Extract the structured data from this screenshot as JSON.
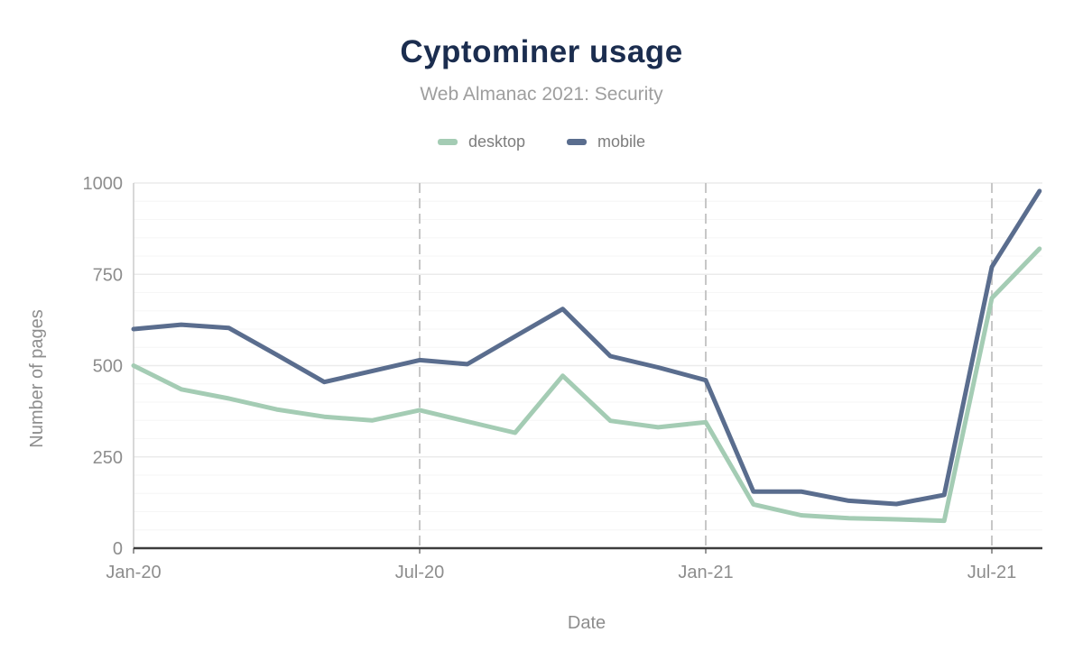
{
  "page": {
    "background": "#ffffff"
  },
  "chart_data": {
    "type": "line",
    "title": "Cyptominer usage",
    "subtitle": "Web Almanac 2021: Security",
    "xlabel": "Date",
    "ylabel": "Number of pages",
    "x": [
      "Jan-20",
      "Feb-20",
      "Mar-20",
      "Apr-20",
      "May-20",
      "Jun-20",
      "Jul-20",
      "Aug-20",
      "Sep-20",
      "Oct-20",
      "Nov-20",
      "Dec-20",
      "Jan-21",
      "Feb-21",
      "Mar-21",
      "Apr-21",
      "May-21",
      "Jun-21",
      "Jul-21",
      "Aug-21"
    ],
    "x_tick_labels": [
      "Jan-20",
      "Jul-20",
      "Jan-21",
      "Jul-21"
    ],
    "x_tick_indices": [
      0,
      6,
      12,
      18
    ],
    "y_ticks": [
      0,
      250,
      500,
      750,
      1000
    ],
    "ylim": [
      0,
      1000
    ],
    "minor_grid_step": 50,
    "grid": true,
    "legend_position": "top-center",
    "series": [
      {
        "name": "desktop",
        "color": "#a4ccb4",
        "values": [
          500,
          435,
          410,
          380,
          360,
          350,
          378,
          347,
          316,
          472,
          349,
          331,
          345,
          120,
          90,
          82,
          79,
          75,
          685,
          820
        ]
      },
      {
        "name": "mobile",
        "color": "#5a6d8e",
        "values": [
          600,
          612,
          603,
          530,
          455,
          485,
          515,
          504,
          580,
          655,
          526,
          495,
          460,
          155,
          155,
          130,
          121,
          146,
          770,
          978
        ]
      }
    ]
  },
  "colors": {
    "title": "#1b2d4f",
    "subtitle": "#9e9e9e",
    "tick_text": "#8d8d8d",
    "axis_title": "#8d8d8d",
    "legend_text": "#7d7d7d",
    "axis_line": "#3c3c3c",
    "boundary_line": "#cccccc",
    "grid_major": "#ebebeb",
    "grid_minor": "#f6f6f6",
    "grid_vertical": "#c7c7c7",
    "tick_mark": "#999999"
  }
}
